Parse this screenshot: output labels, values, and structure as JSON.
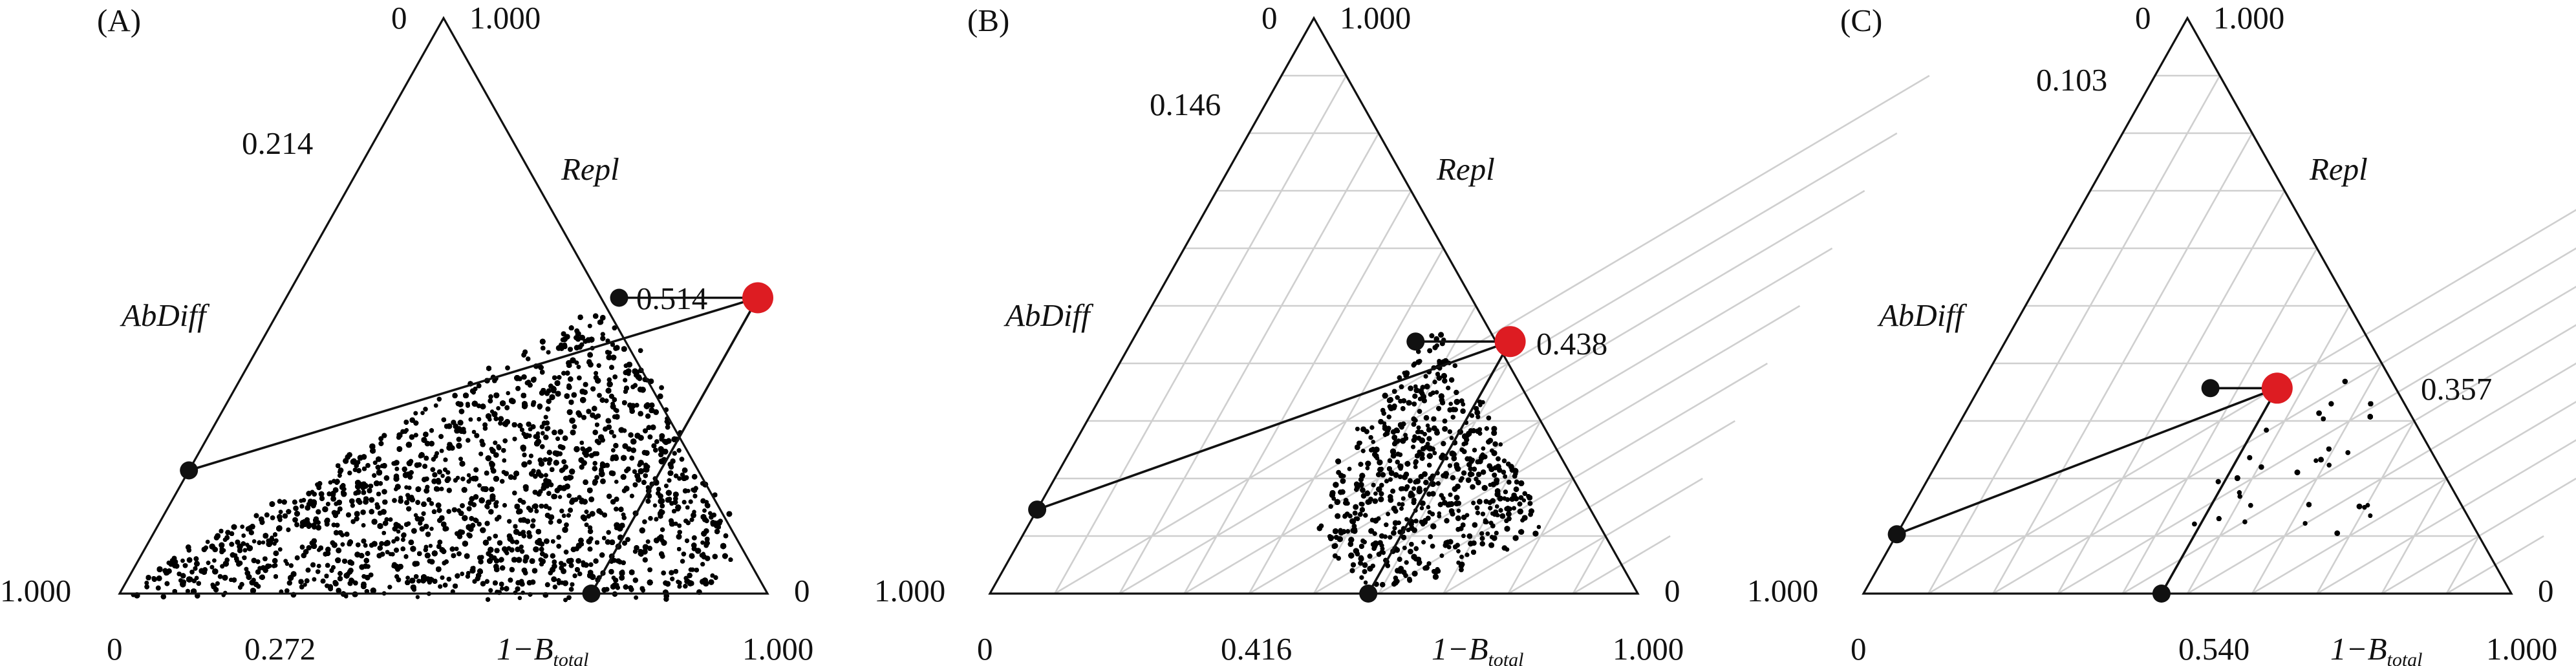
{
  "chart_data": [
    {
      "type": "scatter",
      "panel_label": "(A)",
      "axis_labels": {
        "left": "AbDiff",
        "right": "Repl",
        "bottom_prefix": "1−B",
        "bottom_subscript": "total"
      },
      "corner_ticks": {
        "top": [
          "0",
          "1.000"
        ],
        "bottom_left": "1.000",
        "bottom_right": "0",
        "bottom_start": "0",
        "bottom_end": "1.000"
      },
      "grid": false,
      "point_density": "saturated",
      "mean": {
        "total": 0.272,
        "repl": 0.514,
        "abdiff": 0.214
      },
      "mean_labels": {
        "total": "0.272",
        "repl": "0.514",
        "abdiff": "0.214"
      },
      "colors": {
        "points": "#000000",
        "mean": "#dd1c22",
        "grid": "#cfcfcf"
      }
    },
    {
      "type": "scatter",
      "panel_label": "(B)",
      "axis_labels": {
        "left": "AbDiff",
        "right": "Repl",
        "bottom_prefix": "1−B",
        "bottom_subscript": "total"
      },
      "corner_ticks": {
        "top": [
          "0",
          "1.000"
        ],
        "bottom_left": "1.000",
        "bottom_right": "0",
        "bottom_start": "0",
        "bottom_end": "1.000"
      },
      "grid": true,
      "point_density": "medium",
      "mean": {
        "total": 0.416,
        "repl": 0.438,
        "abdiff": 0.146
      },
      "mean_labels": {
        "total": "0.416",
        "repl": "0.438",
        "abdiff": "0.146"
      },
      "colors": {
        "points": "#000000",
        "mean": "#dd1c22",
        "grid": "#cfcfcf"
      }
    },
    {
      "type": "scatter",
      "panel_label": "(C)",
      "axis_labels": {
        "left": "AbDiff",
        "right": "Repl",
        "bottom_prefix": "1−B",
        "bottom_subscript": "total"
      },
      "corner_ticks": {
        "top": [
          "0",
          "1.000"
        ],
        "bottom_left": "1.000",
        "bottom_right": "0",
        "bottom_start": "0",
        "bottom_end": "1.000"
      },
      "grid": true,
      "point_density": "sparse",
      "mean": {
        "total": 0.54,
        "repl": 0.357,
        "abdiff": 0.103
      },
      "mean_labels": {
        "total": "0.540",
        "repl": "0.357",
        "abdiff": "0.103"
      },
      "colors": {
        "points": "#000000",
        "mean": "#dd1c22",
        "grid": "#cfcfcf"
      }
    }
  ]
}
